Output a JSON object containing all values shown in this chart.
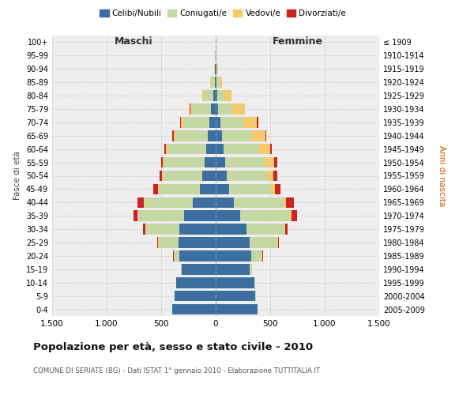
{
  "age_groups": [
    "100+",
    "95-99",
    "90-94",
    "85-89",
    "80-84",
    "75-79",
    "70-74",
    "65-69",
    "60-64",
    "55-59",
    "50-54",
    "45-49",
    "40-44",
    "35-39",
    "30-34",
    "25-29",
    "20-24",
    "15-19",
    "10-14",
    "5-9",
    "0-4"
  ],
  "birth_years": [
    "≤ 1909",
    "1910-1914",
    "1915-1919",
    "1920-1924",
    "1925-1929",
    "1930-1934",
    "1935-1939",
    "1940-1944",
    "1945-1949",
    "1950-1954",
    "1955-1959",
    "1960-1964",
    "1965-1969",
    "1970-1974",
    "1975-1979",
    "1980-1984",
    "1985-1989",
    "1990-1994",
    "1995-1999",
    "2000-2004",
    "2005-2009"
  ],
  "males": {
    "celibi": [
      2,
      2,
      5,
      10,
      20,
      40,
      55,
      70,
      90,
      100,
      120,
      145,
      210,
      290,
      330,
      340,
      335,
      310,
      360,
      375,
      400
    ],
    "coniugati": [
      1,
      2,
      10,
      35,
      90,
      175,
      245,
      300,
      355,
      370,
      365,
      375,
      440,
      420,
      315,
      185,
      50,
      10,
      5,
      2,
      2
    ],
    "vedovi": [
      0,
      0,
      2,
      8,
      15,
      20,
      20,
      15,
      12,
      12,
      8,
      7,
      6,
      6,
      3,
      2,
      2,
      0,
      0,
      0,
      0
    ],
    "divorziati": [
      0,
      0,
      0,
      0,
      0,
      5,
      8,
      10,
      15,
      20,
      22,
      45,
      65,
      40,
      20,
      10,
      3,
      1,
      0,
      0,
      0
    ]
  },
  "females": {
    "nubili": [
      2,
      2,
      5,
      10,
      15,
      25,
      40,
      55,
      70,
      85,
      100,
      125,
      165,
      225,
      285,
      315,
      325,
      310,
      355,
      365,
      385
    ],
    "coniugate": [
      1,
      2,
      8,
      25,
      65,
      130,
      210,
      275,
      325,
      365,
      375,
      385,
      455,
      455,
      345,
      250,
      100,
      20,
      5,
      3,
      2
    ],
    "vedove": [
      0,
      1,
      8,
      25,
      65,
      110,
      130,
      125,
      105,
      85,
      55,
      32,
      22,
      16,
      10,
      5,
      3,
      2,
      0,
      0,
      0
    ],
    "divorziate": [
      0,
      0,
      0,
      0,
      0,
      5,
      10,
      12,
      18,
      28,
      32,
      52,
      72,
      48,
      22,
      12,
      4,
      1,
      0,
      0,
      0
    ]
  },
  "colors": {
    "celibi": "#3c6fa0",
    "coniugati": "#c5d8a4",
    "vedovi": "#f5c96e",
    "divorziati": "#cc2222"
  },
  "title": "Popolazione per età, sesso e stato civile - 2010",
  "subtitle": "COMUNE DI SERIATE (BG) - Dati ISTAT 1° gennaio 2010 - Elaborazione TUTTITALIA.IT",
  "xlabel_left": "Maschi",
  "xlabel_right": "Femmine",
  "ylabel_left": "Fasce di età",
  "ylabel_right": "Anni di nascita",
  "xlim": 1500,
  "bg_color": "#eeeeee",
  "grid_color": "#cccccc"
}
